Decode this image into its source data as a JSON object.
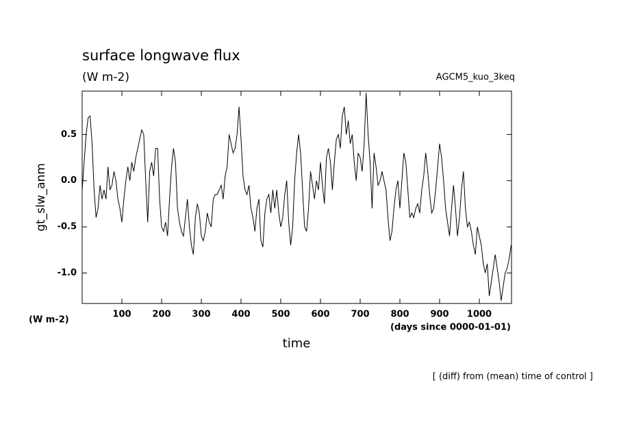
{
  "chart_data": {
    "type": "line",
    "title": "surface longwave flux",
    "subtitle": "(W m-2)",
    "annotation": "AGCM5_kuo_3keq",
    "ylabel": "gt_slw_anm",
    "yunit": "(W m-2)",
    "xunit": "(days since 0000-01-01)",
    "xlabel": "time",
    "footnote": "[ (diff) from (mean) time of control ]",
    "xlim": [
      0,
      1081
    ],
    "ylim": [
      -1.33,
      0.97
    ],
    "xticks": [
      100,
      200,
      300,
      400,
      500,
      600,
      700,
      800,
      900,
      1000
    ],
    "yticks": [
      0.5,
      {
        "value": 0,
        "label": "0.0"
      },
      -0.5,
      {
        "value": -1,
        "label": "-1.0"
      }
    ],
    "color": "#000000",
    "x": [
      0,
      5,
      10,
      15,
      20,
      25,
      30,
      35,
      40,
      45,
      50,
      55,
      60,
      65,
      70,
      75,
      80,
      85,
      90,
      95,
      100,
      105,
      110,
      115,
      120,
      125,
      130,
      135,
      140,
      145,
      150,
      155,
      160,
      165,
      170,
      175,
      180,
      185,
      190,
      195,
      200,
      205,
      210,
      215,
      220,
      225,
      230,
      235,
      240,
      245,
      250,
      255,
      260,
      265,
      270,
      275,
      280,
      285,
      290,
      295,
      300,
      305,
      310,
      315,
      320,
      325,
      330,
      335,
      340,
      345,
      350,
      355,
      360,
      365,
      370,
      375,
      380,
      385,
      390,
      395,
      400,
      405,
      410,
      415,
      420,
      425,
      430,
      435,
      440,
      445,
      450,
      455,
      460,
      465,
      470,
      475,
      480,
      485,
      490,
      495,
      500,
      505,
      510,
      515,
      520,
      525,
      530,
      535,
      540,
      545,
      550,
      555,
      560,
      565,
      570,
      575,
      580,
      585,
      590,
      595,
      600,
      605,
      610,
      615,
      620,
      625,
      630,
      635,
      640,
      645,
      650,
      655,
      660,
      665,
      670,
      675,
      680,
      685,
      690,
      695,
      700,
      705,
      710,
      715,
      720,
      725,
      730,
      735,
      740,
      745,
      750,
      755,
      760,
      765,
      770,
      775,
      780,
      785,
      790,
      795,
      800,
      805,
      810,
      815,
      820,
      825,
      830,
      835,
      840,
      845,
      850,
      855,
      860,
      865,
      870,
      875,
      880,
      885,
      890,
      895,
      900,
      905,
      910,
      915,
      920,
      925,
      930,
      935,
      940,
      945,
      950,
      955,
      960,
      965,
      970,
      975,
      980,
      985,
      990,
      995,
      1000,
      1005,
      1010,
      1015,
      1020,
      1025,
      1030,
      1035,
      1040,
      1045,
      1050,
      1055,
      1060,
      1065,
      1070,
      1075,
      1080
    ],
    "values": [
      -0.1,
      0.2,
      0.5,
      0.68,
      0.7,
      0.4,
      -0.1,
      -0.4,
      -0.3,
      -0.05,
      -0.2,
      -0.1,
      -0.2,
      0.15,
      -0.1,
      -0.05,
      0.1,
      0.0,
      -0.2,
      -0.3,
      -0.45,
      -0.2,
      0.0,
      0.15,
      0.0,
      0.2,
      0.1,
      0.25,
      0.35,
      0.45,
      0.55,
      0.5,
      0.0,
      -0.45,
      0.1,
      0.2,
      0.05,
      0.35,
      0.35,
      -0.2,
      -0.5,
      -0.55,
      -0.45,
      -0.6,
      -0.2,
      0.15,
      0.35,
      0.2,
      -0.3,
      -0.45,
      -0.55,
      -0.6,
      -0.4,
      -0.2,
      -0.5,
      -0.7,
      -0.8,
      -0.4,
      -0.25,
      -0.35,
      -0.6,
      -0.65,
      -0.55,
      -0.35,
      -0.45,
      -0.5,
      -0.2,
      -0.15,
      -0.15,
      -0.1,
      -0.05,
      -0.2,
      0.05,
      0.15,
      0.5,
      0.4,
      0.3,
      0.35,
      0.5,
      0.8,
      0.45,
      0.05,
      -0.1,
      -0.15,
      -0.05,
      -0.3,
      -0.4,
      -0.55,
      -0.3,
      -0.2,
      -0.65,
      -0.72,
      -0.35,
      -0.2,
      -0.15,
      -0.35,
      -0.1,
      -0.3,
      -0.1,
      -0.35,
      -0.5,
      -0.4,
      -0.15,
      0.0,
      -0.45,
      -0.7,
      -0.5,
      0.0,
      0.3,
      0.5,
      0.3,
      -0.1,
      -0.5,
      -0.55,
      -0.3,
      0.1,
      -0.05,
      -0.2,
      0.0,
      -0.1,
      0.2,
      -0.05,
      -0.25,
      0.25,
      0.35,
      0.2,
      -0.1,
      0.2,
      0.45,
      0.5,
      0.35,
      0.7,
      0.8,
      0.5,
      0.65,
      0.4,
      0.5,
      0.2,
      0.0,
      0.3,
      0.25,
      0.1,
      0.4,
      0.95,
      0.5,
      0.2,
      -0.3,
      0.3,
      0.15,
      -0.05,
      0.0,
      0.1,
      0.0,
      -0.1,
      -0.4,
      -0.65,
      -0.55,
      -0.3,
      -0.1,
      0.0,
      -0.3,
      0.0,
      0.3,
      0.2,
      -0.1,
      -0.4,
      -0.35,
      -0.4,
      -0.3,
      -0.25,
      -0.35,
      -0.1,
      0.05,
      0.3,
      0.1,
      -0.15,
      -0.35,
      -0.3,
      -0.1,
      0.15,
      0.4,
      0.25,
      0.0,
      -0.3,
      -0.45,
      -0.6,
      -0.3,
      -0.05,
      -0.3,
      -0.6,
      -0.4,
      -0.1,
      0.1,
      -0.3,
      -0.5,
      -0.45,
      -0.55,
      -0.7,
      -0.8,
      -0.5,
      -0.6,
      -0.7,
      -0.9,
      -1.0,
      -0.9,
      -1.25,
      -1.1,
      -0.95,
      -0.8,
      -0.95,
      -1.1,
      -1.3,
      -1.15,
      -1.0,
      -0.95,
      -0.85,
      -0.7
    ]
  }
}
